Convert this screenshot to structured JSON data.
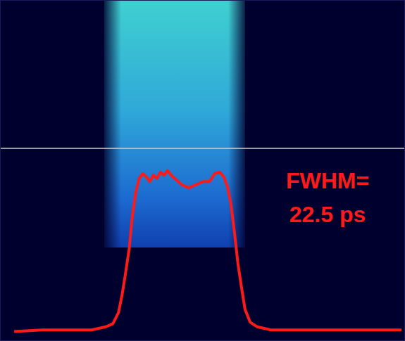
{
  "chart_data": {
    "type": "line",
    "x": [
      2.8,
      8.3,
      13.9,
      18.1,
      20.9,
      22.3,
      23.4,
      24.1,
      24.8,
      25.5,
      26.1,
      26.8,
      27.5,
      28.2,
      28.9,
      29.6,
      30.3,
      31.0,
      31.7,
      32.4,
      33.1,
      33.8,
      34.5,
      35.9,
      37.3,
      38.7,
      40.1,
      41.4,
      42.4,
      43.4,
      44.2,
      44.9,
      45.6,
      46.3,
      47.0,
      47.7,
      48.4,
      49.4,
      50.8,
      53.5,
      59.8,
      66.8,
      72.3,
      79.3
    ],
    "values": [
      -0.01,
      0.0,
      0.0,
      0.0,
      0.02,
      0.04,
      0.11,
      0.22,
      0.36,
      0.51,
      0.71,
      0.87,
      0.96,
      0.99,
      0.97,
      0.94,
      0.98,
      0.96,
      1.0,
      0.98,
      1.01,
      0.98,
      0.96,
      0.92,
      0.9,
      0.92,
      0.94,
      0.94,
      0.99,
      1.0,
      0.97,
      0.91,
      0.8,
      0.62,
      0.42,
      0.27,
      0.13,
      0.05,
      0.02,
      0.0,
      0.0,
      0.0,
      0.0,
      0.0
    ],
    "color": "#ff1a1a",
    "xlim": [
      0,
      80
    ],
    "ylim": [
      -0.07,
      2.09
    ],
    "tick_labels": false,
    "annotations": [
      "FWHM=",
      "22.5 ps"
    ]
  }
}
